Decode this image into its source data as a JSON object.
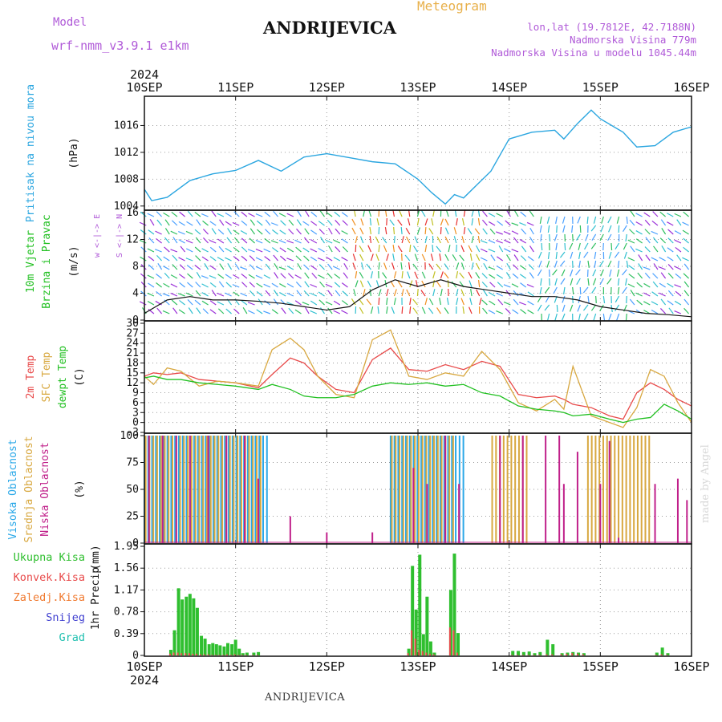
{
  "header": {
    "model_label": "Model",
    "model_name": "wrf-nmm_v3.9.1  e1km",
    "title": "ANDRIJEVICA",
    "meteogram_label": "Meteogram",
    "lonlat": "lon,lat (19.7812E, 42.7188N)",
    "altitude": "Nadmorska Visina 779m",
    "model_altitude": "Nadmorska Visina u modelu 1045.44m",
    "credit": "made by Angel",
    "footer_name": "ANDRIJEVICA"
  },
  "colors": {
    "pressure": "#2ba6e0",
    "temp2m": "#e84a4a",
    "sfc_temp": "#d8a840",
    "dewpoint": "#22c022",
    "cloud_high": "#2aa8e8",
    "cloud_mid": "#d8a840",
    "cloud_low": "#c0208a",
    "rain_total": "#2fbf2f",
    "rain_conv": "#e84a4a",
    "rain_frozen": "#f07a30",
    "snow": "#4040d0",
    "hail": "#20c0b0",
    "purple_label": "#b05ad8"
  },
  "chart_data": [
    {
      "type": "line",
      "panel": "pressure",
      "x_axis": {
        "top_year": "2024",
        "bottom_year": "2024",
        "tick_labels": [
          "10SEP",
          "11SEP",
          "12SEP",
          "13SEP",
          "14SEP",
          "15SEP",
          "16SEP"
        ]
      },
      "ylabel": "Pritisak na nivou mora",
      "unit": "(hPa)",
      "ylim": [
        1003.5,
        1020
      ],
      "yticks": [
        1004,
        1008,
        1012,
        1016
      ],
      "grid": true,
      "x": [
        0,
        0.08,
        0.25,
        0.5,
        0.75,
        1.0,
        1.25,
        1.5,
        1.75,
        2.0,
        2.25,
        2.5,
        2.75,
        3.0,
        3.15,
        3.3,
        3.4,
        3.5,
        3.65,
        3.8,
        4.0,
        4.25,
        4.5,
        4.6,
        4.75,
        4.9,
        5.0,
        5.25,
        5.4,
        5.6,
        5.8,
        6.0
      ],
      "series": [
        {
          "values": [
            1006.5,
            1004.8,
            1005.3,
            1007.8,
            1008.8,
            1009.3,
            1010.8,
            1009.2,
            1011.3,
            1011.8,
            1011.2,
            1010.6,
            1010.3,
            1008.0,
            1006.0,
            1004.3,
            1005.7,
            1005.2,
            1007.2,
            1009.2,
            1014.0,
            1015.0,
            1015.3,
            1014.0,
            1016.3,
            1018.3,
            1017.0,
            1015.0,
            1012.8,
            1013.0,
            1015.0,
            1015.8
          ]
        }
      ]
    },
    {
      "type": "line",
      "panel": "wind",
      "ylabel": "10m Vjetar",
      "ylabel2": "Brzina i Pravac",
      "unit": "(m/s)",
      "compass_label": "w <-|-> E",
      "compass_label2": "S <-|-> N",
      "ylim": [
        0,
        16
      ],
      "yticks": [
        0,
        4,
        8,
        12,
        16
      ],
      "grid": true,
      "x": [
        0,
        0.25,
        0.5,
        0.75,
        1.0,
        1.25,
        1.5,
        1.75,
        2.0,
        2.25,
        2.5,
        2.75,
        3.0,
        3.25,
        3.5,
        3.75,
        4.0,
        4.25,
        4.5,
        4.75,
        5.0,
        5.25,
        5.5,
        5.75,
        6.0
      ],
      "series": [
        {
          "values": [
            1.0,
            3.0,
            3.5,
            3.0,
            3.0,
            2.8,
            2.5,
            2.0,
            1.5,
            2.0,
            4.5,
            6.0,
            5.0,
            6.0,
            5.0,
            4.5,
            4.0,
            3.5,
            3.5,
            3.0,
            2.0,
            1.5,
            1.0,
            0.8,
            0.5
          ]
        }
      ]
    },
    {
      "type": "line",
      "panel": "temperature",
      "ylabel": "2m Temp",
      "ylabel2": "SFC Temp",
      "ylabel3": "dewpt Temp",
      "unit": "(C)",
      "ylim": [
        -3,
        30
      ],
      "yticks": [
        -3,
        0,
        3,
        6,
        9,
        12,
        15,
        18,
        21,
        24,
        27,
        30
      ],
      "grid": true,
      "x": [
        0,
        0.1,
        0.25,
        0.4,
        0.6,
        0.8,
        1.0,
        1.25,
        1.4,
        1.6,
        1.75,
        1.9,
        2.1,
        2.3,
        2.5,
        2.7,
        2.9,
        3.1,
        3.3,
        3.5,
        3.7,
        3.9,
        4.1,
        4.3,
        4.5,
        4.6,
        4.7,
        4.9,
        5.1,
        5.25,
        5.4,
        5.55,
        5.7,
        5.85,
        6.0
      ],
      "series": [
        {
          "name": "2m Temp",
          "values": [
            14.0,
            15.0,
            14.5,
            15.0,
            13.0,
            12.5,
            12.0,
            10.5,
            14.5,
            19.5,
            18.0,
            14.0,
            10.0,
            9.0,
            19.0,
            22.5,
            16.0,
            15.5,
            17.5,
            16.0,
            18.5,
            17.0,
            8.5,
            7.5,
            8.0,
            7.0,
            5.5,
            4.5,
            2.0,
            1.0,
            9.0,
            12.0,
            10.0,
            7.0,
            5.0
          ]
        },
        {
          "name": "SFC Temp",
          "values": [
            14.0,
            11.5,
            16.5,
            15.5,
            11.0,
            12.5,
            12.0,
            11.0,
            22.0,
            25.5,
            22.0,
            14.0,
            8.5,
            7.5,
            25.0,
            28.0,
            14.0,
            13.0,
            15.0,
            14.0,
            21.5,
            16.0,
            6.0,
            3.5,
            7.0,
            4.0,
            17.0,
            2.0,
            0.0,
            -1.5,
            4.5,
            16.0,
            14.0,
            6.0,
            0.0
          ]
        },
        {
          "name": "dewpt Temp",
          "values": [
            13.5,
            14.0,
            13.0,
            13.0,
            12.0,
            11.5,
            11.0,
            10.0,
            11.5,
            10.0,
            8.0,
            7.5,
            7.5,
            8.5,
            11.0,
            12.0,
            11.5,
            12.0,
            11.0,
            11.5,
            9.0,
            8.0,
            5.0,
            4.0,
            3.5,
            3.0,
            2.0,
            2.5,
            1.0,
            0.0,
            1.0,
            1.5,
            5.5,
            3.5,
            1.0
          ]
        }
      ]
    },
    {
      "type": "bar",
      "panel": "clouds",
      "ylabel": "Visoka Oblacnost",
      "ylabel2": "Srednja Oblacnost",
      "ylabel3": "Niska Oblacnost",
      "unit": "(%)",
      "ylim": [
        0,
        100
      ],
      "yticks": [
        0,
        25,
        50,
        75,
        100
      ],
      "grid": true,
      "series": [
        {
          "name": "Visoka Oblacnost",
          "segments": [
            [
              0,
              1.38,
              100
            ],
            [
              2.7,
              3.5,
              100
            ]
          ]
        },
        {
          "name": "Srednja Oblacnost",
          "segments": [
            [
              0,
              1.3,
              100
            ],
            [
              2.7,
              3.4,
              100
            ],
            [
              3.8,
              4.2,
              100
            ],
            [
              4.85,
              5.55,
              100
            ]
          ]
        },
        {
          "name": "Niska Oblacnost",
          "x": [
            0.05,
            0.2,
            0.35,
            0.5,
            0.7,
            0.9,
            1.1,
            1.25,
            1.6,
            2.0,
            2.5,
            2.95,
            3.1,
            3.3,
            3.45,
            3.9,
            4.15,
            4.4,
            4.55,
            4.6,
            4.75,
            5.0,
            5.1,
            5.2,
            5.6,
            5.85,
            5.95
          ],
          "values": [
            100,
            100,
            100,
            100,
            100,
            100,
            100,
            60,
            25,
            10,
            10,
            70,
            55,
            100,
            55,
            100,
            100,
            100,
            100,
            55,
            85,
            55,
            95,
            5,
            55,
            60,
            40
          ]
        }
      ]
    },
    {
      "type": "bar",
      "panel": "precipitation",
      "legend": [
        "Ukupna Kisa",
        "Konvek.Kisa",
        "Zaledj.Kisa",
        "Snijeg",
        "Grad"
      ],
      "ylabel": "1hr Precip",
      "unit": "(mm)",
      "ylim": [
        0,
        1.95
      ],
      "yticks": [
        0,
        0.39,
        0.78,
        1.17,
        1.56,
        1.95
      ],
      "ytick_labels": [
        "0",
        "0.39",
        "0.78",
        "1.17",
        "1.56",
        "1.95"
      ],
      "grid": true,
      "x": [
        0.29,
        0.33,
        0.375,
        0.415,
        0.46,
        0.5,
        0.54,
        0.58,
        0.625,
        0.665,
        0.71,
        0.75,
        0.79,
        0.83,
        0.875,
        0.915,
        0.96,
        1.0,
        1.04,
        1.08,
        1.125,
        1.2,
        1.25,
        2.9,
        2.94,
        2.98,
        3.02,
        3.06,
        3.1,
        3.14,
        3.18,
        3.36,
        3.4,
        3.44,
        4.04,
        4.1,
        4.16,
        4.22,
        4.28,
        4.34,
        4.42,
        4.48,
        4.58,
        4.64,
        4.7,
        4.76,
        4.82,
        5.62,
        5.68,
        5.74
      ],
      "series": [
        {
          "name": "Ukupna Kisa",
          "values": [
            0.1,
            0.45,
            1.2,
            1.0,
            1.05,
            1.1,
            1.02,
            0.85,
            0.35,
            0.3,
            0.2,
            0.22,
            0.2,
            0.18,
            0.16,
            0.22,
            0.2,
            0.28,
            0.12,
            0.04,
            0.05,
            0.05,
            0.06,
            0.12,
            1.6,
            0.82,
            1.8,
            0.38,
            1.05,
            0.25,
            0.05,
            1.17,
            1.82,
            0.4,
            0.08,
            0.08,
            0.06,
            0.07,
            0.04,
            0.06,
            0.28,
            0.2,
            0.04,
            0.05,
            0.06,
            0.05,
            0.04,
            0.05,
            0.14,
            0.04
          ]
        },
        {
          "name": "Konvek.Kisa",
          "values": [
            0.03,
            0.05,
            0.05,
            0.04,
            0.04,
            0.04,
            0.03,
            0.03,
            0.02,
            0.02,
            0.02,
            0.01,
            0.01,
            0.01,
            0.01,
            0.02,
            0.01,
            0.02,
            0.01,
            0.01,
            0.01,
            0.01,
            0.01,
            0.04,
            0.45,
            0.3,
            0.1,
            0.08,
            0.05,
            0.03,
            0.02,
            0.5,
            0.45,
            0.05,
            0.01,
            0.01,
            0.01,
            0.01,
            0.01,
            0.01,
            0.02,
            0.02,
            0.02,
            0.03,
            0.04,
            0.03,
            0.02,
            0.01,
            0.02,
            0.01
          ]
        }
      ]
    }
  ]
}
